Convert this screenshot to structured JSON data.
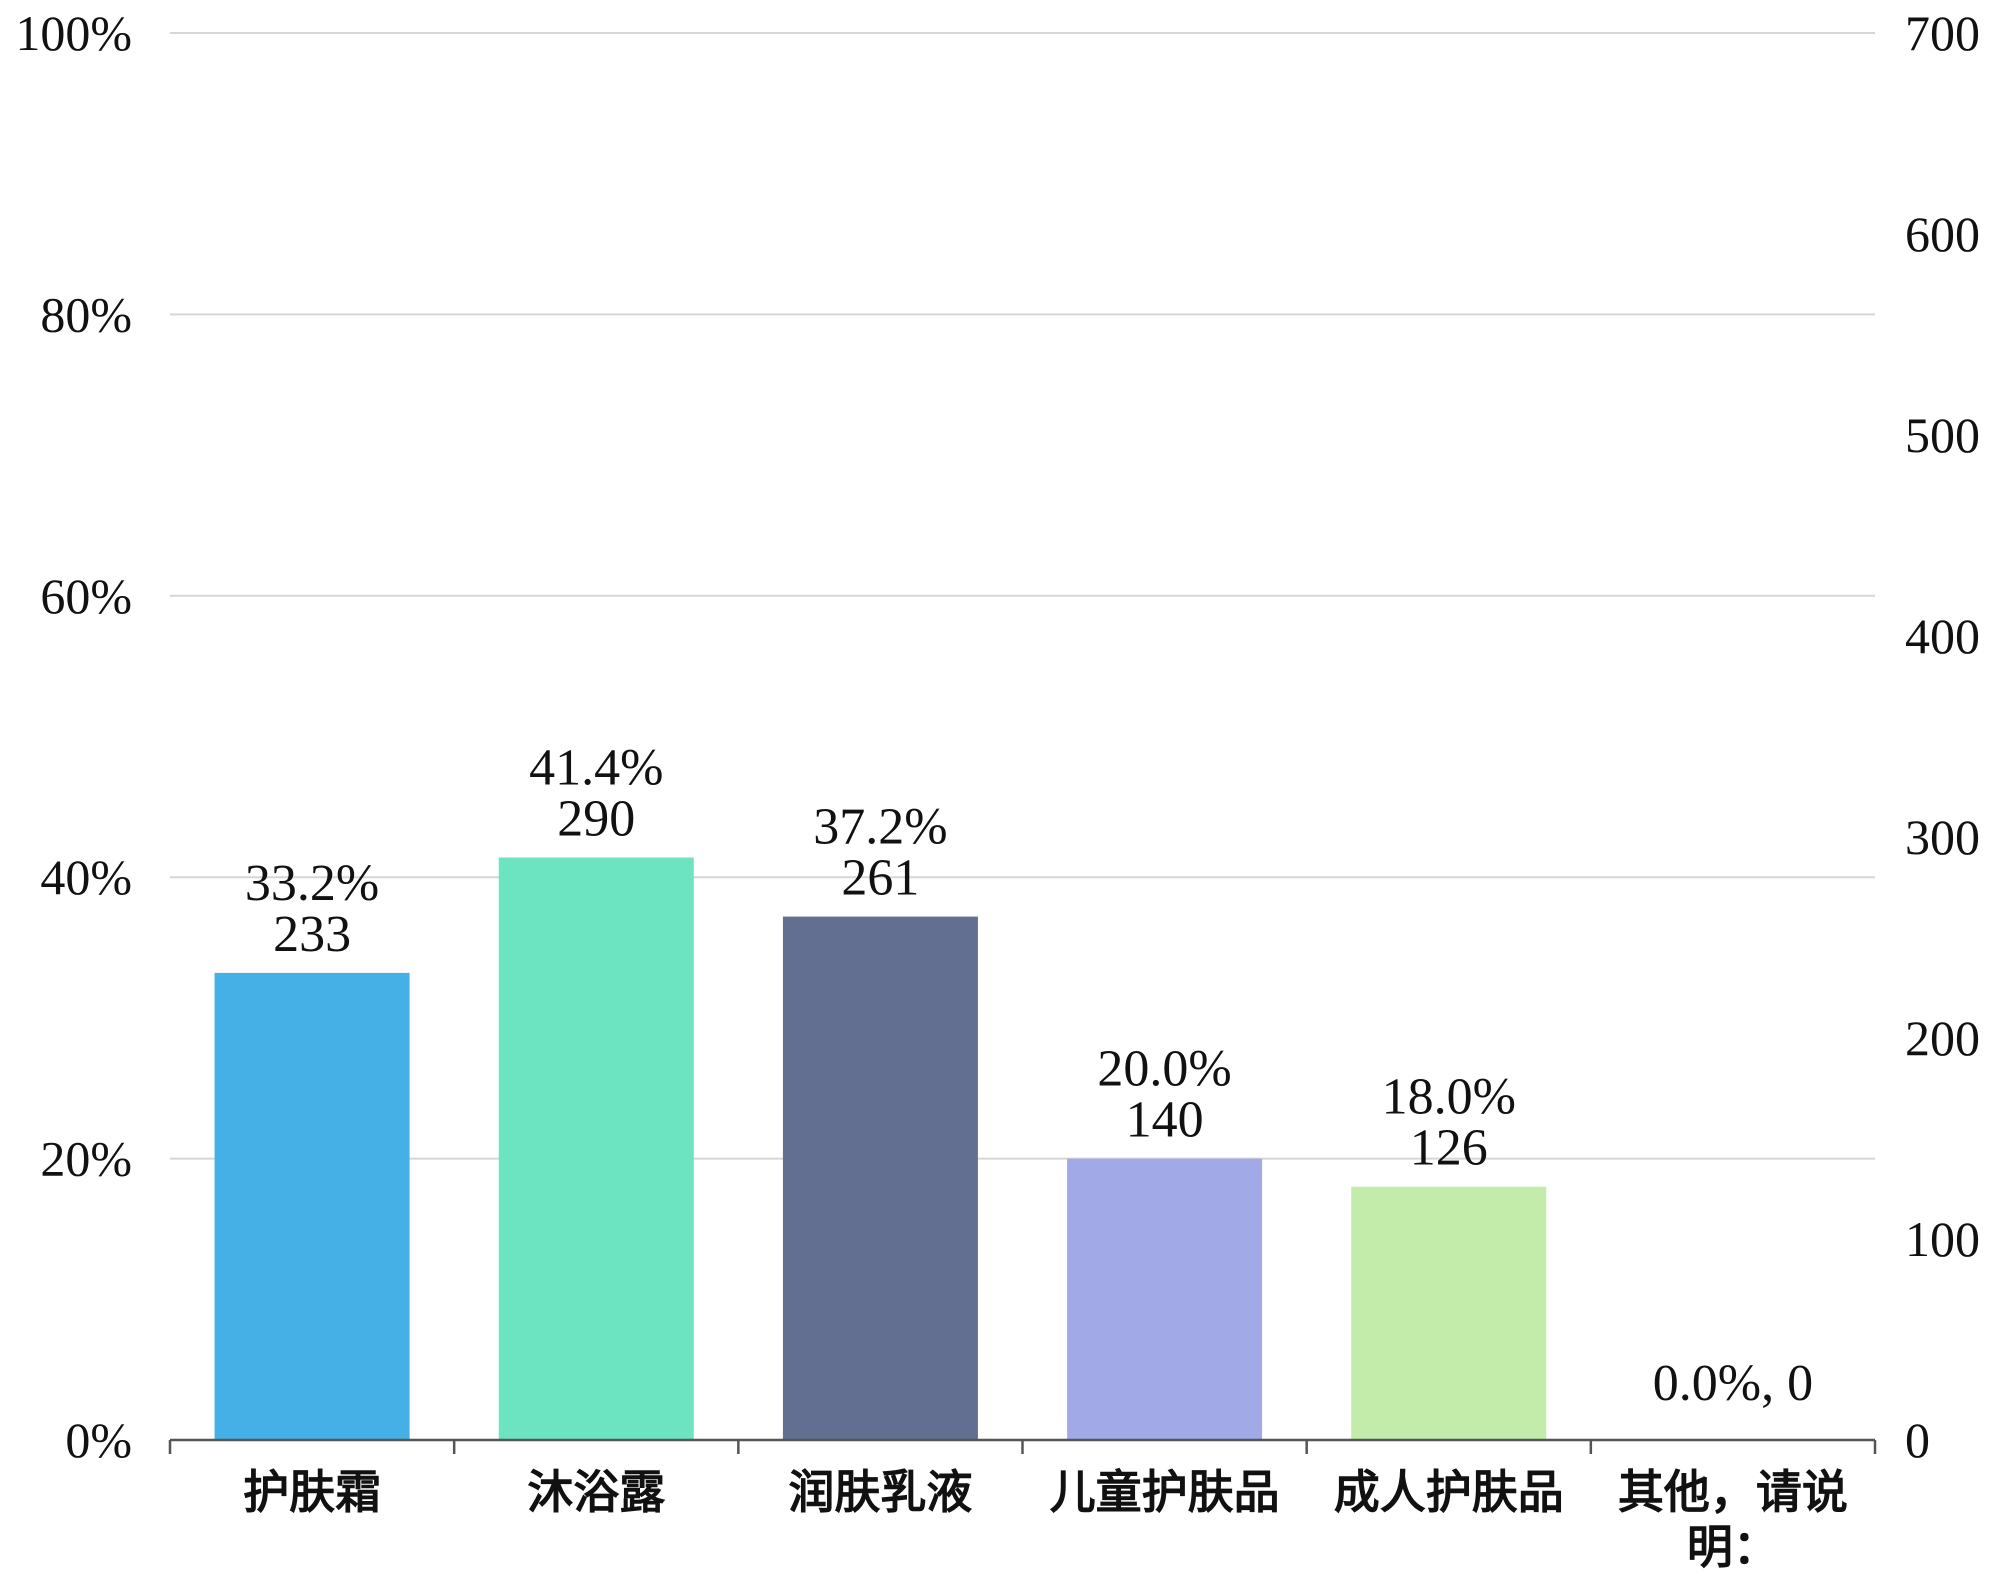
{
  "chart_data": {
    "type": "bar",
    "categories": [
      "护肤霜",
      "沐浴露",
      "润肤乳液",
      "儿童护肤品",
      "成人护肤品",
      "其他，请说明："
    ],
    "series": [
      {
        "percent": [
          33.2,
          41.4,
          37.2,
          20.0,
          18.0,
          0.0
        ],
        "counts": [
          233,
          290,
          261,
          140,
          126,
          0
        ]
      }
    ],
    "data_labels": [
      [
        "33.2%",
        "233"
      ],
      [
        "41.4%",
        "290"
      ],
      [
        "37.2%",
        "261"
      ],
      [
        "20.0%",
        "140"
      ],
      [
        "18.0%",
        "126"
      ],
      [
        "0.0%, 0"
      ]
    ],
    "bar_colors": [
      "#45b0e6",
      "#6ce3c1",
      "#636f91",
      "#a1aae7",
      "#c3ebaa",
      "#ffffff"
    ],
    "y_left": {
      "ticks": [
        "0%",
        "20%",
        "40%",
        "60%",
        "80%",
        "100%"
      ],
      "values": [
        0,
        20,
        40,
        60,
        80,
        100
      ],
      "ylim": [
        0,
        100
      ]
    },
    "y_right": {
      "ticks": [
        "0",
        "100",
        "200",
        "300",
        "400",
        "500",
        "600",
        "700"
      ],
      "values": [
        0,
        100,
        200,
        300,
        400,
        500,
        600,
        700
      ],
      "ylim": [
        0,
        700
      ]
    },
    "grid": true,
    "legend": "none"
  }
}
